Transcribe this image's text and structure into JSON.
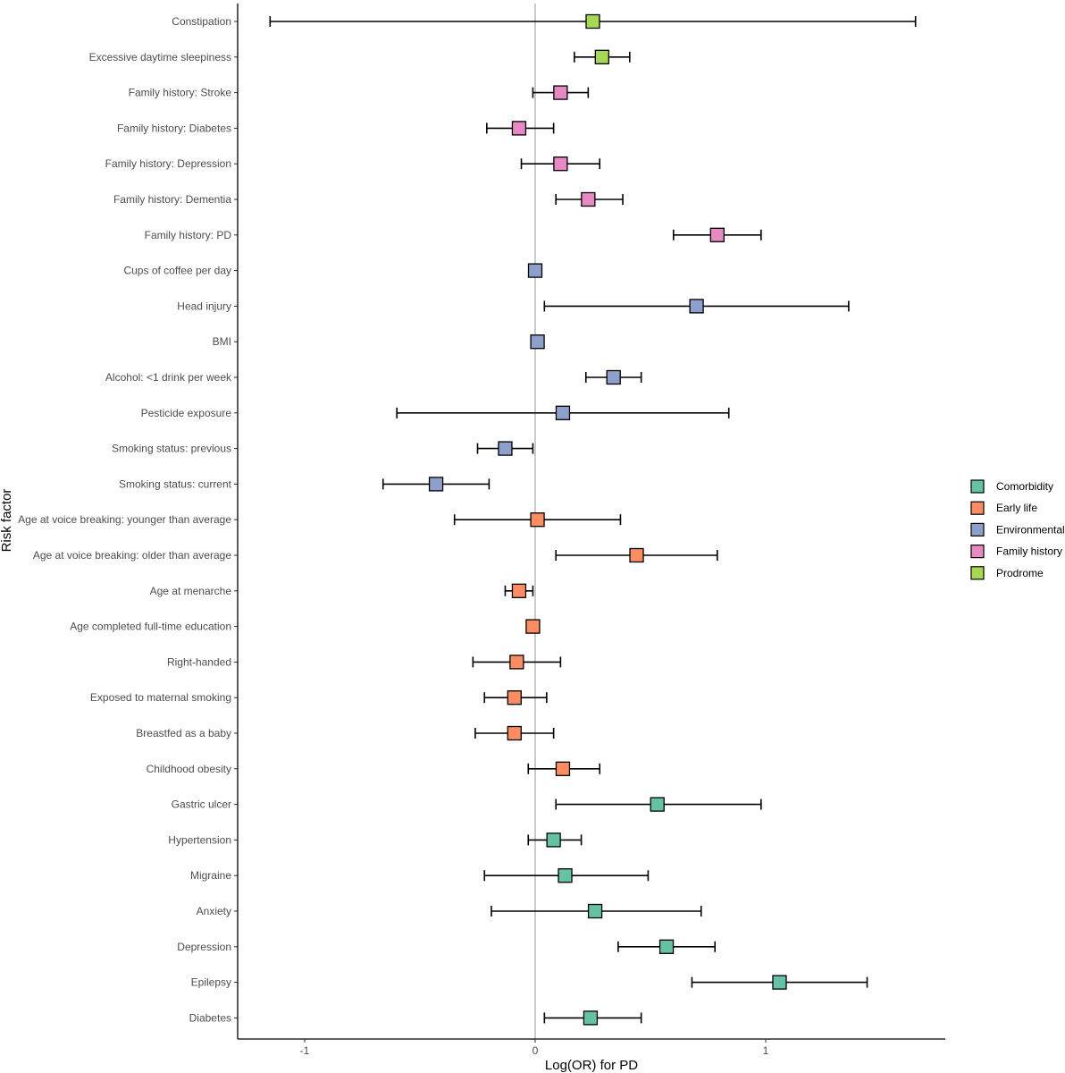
{
  "chart_data": {
    "type": "forest",
    "xlabel": "Log(OR) for PD",
    "ylabel": "Risk factor",
    "xlim": [
      -1.3,
      1.78
    ],
    "x_ticks": [
      -1,
      0,
      1
    ],
    "x_tick_labels": [
      "-1",
      "0",
      "1"
    ],
    "reference_line_x": 0,
    "grid": false,
    "legend_position": "right",
    "legend": [
      {
        "label": "Comorbidity",
        "color": "#66c2a5"
      },
      {
        "label": "Early life",
        "color": "#fc8d62"
      },
      {
        "label": "Environmental",
        "color": "#8da0cb"
      },
      {
        "label": "Family history",
        "color": "#e78ac3"
      },
      {
        "label": "Prodrome",
        "color": "#a6d854"
      }
    ],
    "rows": [
      {
        "label": "Constipation",
        "category": "Prodrome",
        "estimate": 0.25,
        "lower": -1.15,
        "upper": 1.65
      },
      {
        "label": "Excessive daytime sleepiness",
        "category": "Prodrome",
        "estimate": 0.29,
        "lower": 0.17,
        "upper": 0.41
      },
      {
        "label": "Family history: Stroke",
        "category": "Family history",
        "estimate": 0.11,
        "lower": -0.01,
        "upper": 0.23
      },
      {
        "label": "Family history: Diabetes",
        "category": "Family history",
        "estimate": -0.07,
        "lower": -0.21,
        "upper": 0.08
      },
      {
        "label": "Family history: Depression",
        "category": "Family history",
        "estimate": 0.11,
        "lower": -0.06,
        "upper": 0.28
      },
      {
        "label": "Family history: Dementia",
        "category": "Family history",
        "estimate": 0.23,
        "lower": 0.09,
        "upper": 0.38
      },
      {
        "label": "Family history: PD",
        "category": "Family history",
        "estimate": 0.79,
        "lower": 0.6,
        "upper": 0.98
      },
      {
        "label": "Cups of coffee per day",
        "category": "Environmental",
        "estimate": 0.0,
        "lower": -0.01,
        "upper": 0.01
      },
      {
        "label": "Head injury",
        "category": "Environmental",
        "estimate": 0.7,
        "lower": 0.04,
        "upper": 1.36
      },
      {
        "label": "BMI",
        "category": "Environmental",
        "estimate": 0.01,
        "lower": 0.0,
        "upper": 0.02
      },
      {
        "label": "Alcohol: <1 drink per week",
        "category": "Environmental",
        "estimate": 0.34,
        "lower": 0.22,
        "upper": 0.46
      },
      {
        "label": "Pesticide exposure",
        "category": "Environmental",
        "estimate": 0.12,
        "lower": -0.6,
        "upper": 0.84
      },
      {
        "label": "Smoking status: previous",
        "category": "Environmental",
        "estimate": -0.13,
        "lower": -0.25,
        "upper": -0.01
      },
      {
        "label": "Smoking status: current",
        "category": "Environmental",
        "estimate": -0.43,
        "lower": -0.66,
        "upper": -0.2
      },
      {
        "label": "Age at voice breaking: younger than average",
        "category": "Early life",
        "estimate": 0.01,
        "lower": -0.35,
        "upper": 0.37
      },
      {
        "label": "Age at voice breaking: older than average",
        "category": "Early life",
        "estimate": 0.44,
        "lower": 0.09,
        "upper": 0.79
      },
      {
        "label": "Age at menarche",
        "category": "Early life",
        "estimate": -0.07,
        "lower": -0.13,
        "upper": -0.01
      },
      {
        "label": "Age completed full-time education",
        "category": "Early life",
        "estimate": -0.01,
        "lower": -0.02,
        "upper": 0.01
      },
      {
        "label": "Right-handed",
        "category": "Early life",
        "estimate": -0.08,
        "lower": -0.27,
        "upper": 0.11
      },
      {
        "label": "Exposed to maternal smoking",
        "category": "Early life",
        "estimate": -0.09,
        "lower": -0.22,
        "upper": 0.05
      },
      {
        "label": "Breastfed as a baby",
        "category": "Early life",
        "estimate": -0.09,
        "lower": -0.26,
        "upper": 0.08
      },
      {
        "label": "Childhood obesity",
        "category": "Early life",
        "estimate": 0.12,
        "lower": -0.03,
        "upper": 0.28
      },
      {
        "label": "Gastric ulcer",
        "category": "Comorbidity",
        "estimate": 0.53,
        "lower": 0.09,
        "upper": 0.98
      },
      {
        "label": "Hypertension",
        "category": "Comorbidity",
        "estimate": 0.08,
        "lower": -0.03,
        "upper": 0.2
      },
      {
        "label": "Migraine",
        "category": "Comorbidity",
        "estimate": 0.13,
        "lower": -0.22,
        "upper": 0.49
      },
      {
        "label": "Anxiety",
        "category": "Comorbidity",
        "estimate": 0.26,
        "lower": -0.19,
        "upper": 0.72
      },
      {
        "label": "Depression",
        "category": "Comorbidity",
        "estimate": 0.57,
        "lower": 0.36,
        "upper": 0.78
      },
      {
        "label": "Epilepsy",
        "category": "Comorbidity",
        "estimate": 1.06,
        "lower": 0.68,
        "upper": 1.44
      },
      {
        "label": "Diabetes",
        "category": "Comorbidity",
        "estimate": 0.24,
        "lower": 0.04,
        "upper": 0.46
      }
    ]
  }
}
